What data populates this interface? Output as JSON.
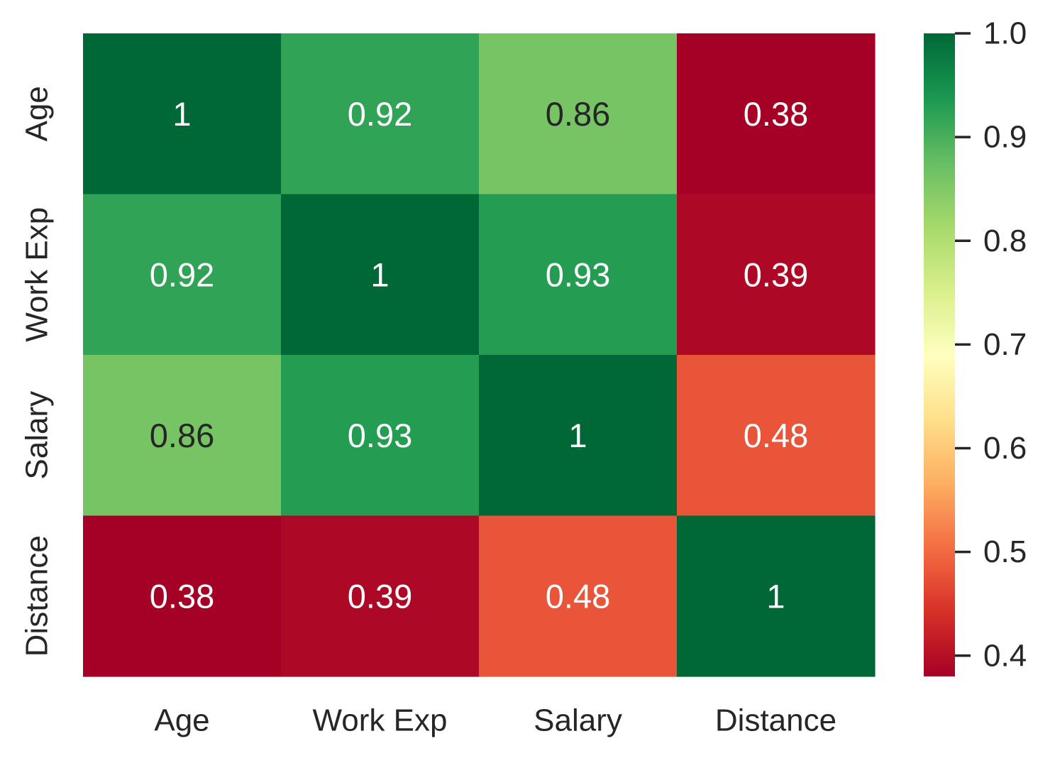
{
  "chart_data": {
    "type": "heatmap",
    "title": "",
    "xlabel": "",
    "ylabel": "",
    "x_categories": [
      "Age",
      "Work Exp",
      "Salary",
      "Distance"
    ],
    "y_categories": [
      "Age",
      "Work Exp",
      "Salary",
      "Distance"
    ],
    "values": [
      [
        1,
        0.92,
        0.86,
        0.38
      ],
      [
        0.92,
        1,
        0.93,
        0.39
      ],
      [
        0.86,
        0.93,
        1,
        0.48
      ],
      [
        0.38,
        0.39,
        0.48,
        1
      ]
    ],
    "annotations": [
      [
        "1",
        "0.92",
        "0.86",
        "0.38"
      ],
      [
        "0.92",
        "1",
        "0.93",
        "0.39"
      ],
      [
        "0.86",
        "0.93",
        "1",
        "0.48"
      ],
      [
        "0.38",
        "0.39",
        "0.48",
        "1"
      ]
    ],
    "colormap": "RdYlGn",
    "colormap_stops": [
      "#a50026",
      "#d73027",
      "#f46d43",
      "#fdae61",
      "#fee08b",
      "#ffffbf",
      "#d9ef8b",
      "#a6d96a",
      "#66bd63",
      "#1a9850",
      "#006837"
    ],
    "vmin": 0.38,
    "vmax": 1.0,
    "colorbar_ticks": [
      0.4,
      0.5,
      0.6,
      0.7,
      0.8,
      0.9,
      1.0
    ],
    "colorbar_tick_labels": [
      "0.4",
      "0.5",
      "0.6",
      "0.7",
      "0.8",
      "0.9",
      "1.0"
    ],
    "text_color_light": "#ffffff",
    "text_color_dark": "#262626",
    "axis_text_color": "#262626",
    "grid": false,
    "legend": "colorbar-right"
  }
}
